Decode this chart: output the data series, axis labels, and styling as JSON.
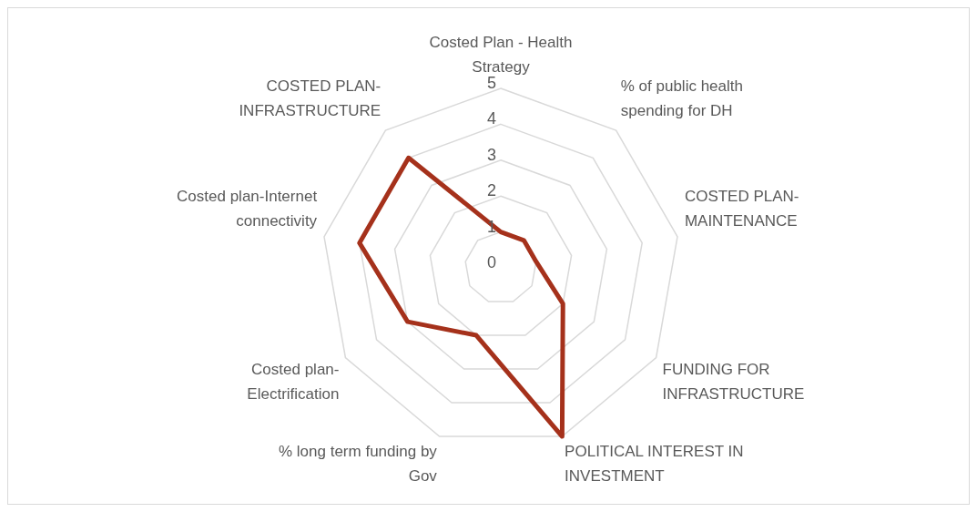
{
  "chart_data": {
    "type": "radar",
    "categories": [
      "Costed Plan - Health Strategy",
      "% of public health spending for DH",
      "COSTED PLAN-MAINTENANCE",
      "FUNDING FOR INFRASTRUCTURE",
      "POLITICAL INTEREST IN INVESTMENT",
      "% long term funding by Gov",
      "Costed plan-Electrification",
      "Costed plan-Internet connectivity",
      "COSTED PLAN-INFRASTRUCTURE"
    ],
    "series": [
      {
        "color": "#a5311b",
        "values": [
          1,
          1,
          1,
          2,
          5,
          2,
          3,
          4,
          4
        ]
      }
    ],
    "ylim": [
      0,
      5
    ],
    "yticks": [
      0,
      1,
      2,
      3,
      4,
      5
    ],
    "grid": true,
    "legend": false,
    "marker": "none"
  }
}
